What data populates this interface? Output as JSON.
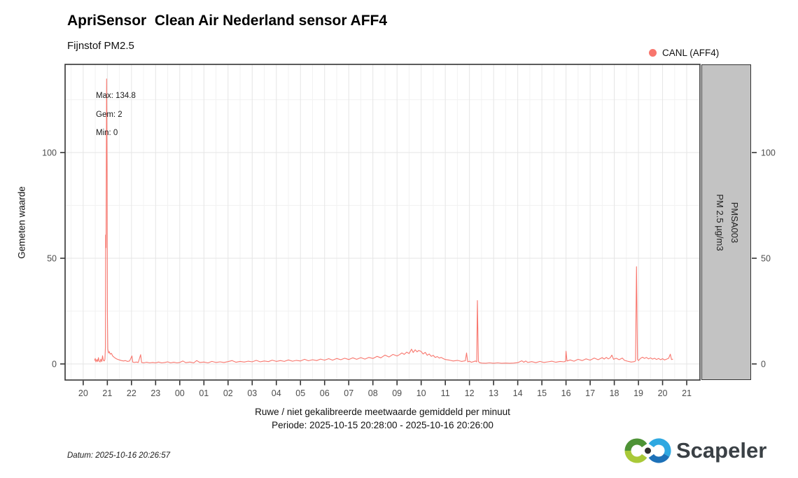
{
  "header": {
    "title": "ApriSensor  Clean Air Nederland sensor AFF4",
    "subtitle": "Fijnstof PM2.5"
  },
  "legend": {
    "label": "CANL (AFF4)"
  },
  "stats": {
    "max": "Max: 134.8",
    "gem": "Gem: 2",
    "min": "Min: 0"
  },
  "strip": {
    "line1": "PMSA003",
    "line2": "PM 2.5 µg/m3"
  },
  "footer": {
    "datum": "Datum: 2025-10-16 20:26:57",
    "logo_text": "Scapeler"
  },
  "colors": {
    "line": "#F8766D",
    "strip_fill": "#C3C3C3",
    "panel_border": "#333333",
    "grid_major": "#E5E5E5",
    "grid_minor": "#F2F2F2",
    "tick_color": "#333333",
    "tick_label": "#4D4D4D",
    "logo_green_dark": "#4E9336",
    "logo_green_light": "#A9C938",
    "logo_blue_light": "#2FA8E1",
    "logo_blue_dark": "#1D71B8",
    "logo_dot": "#2F2F2F",
    "logo_text_color": "#3A4045"
  },
  "chart_data": {
    "type": "line",
    "title": "ApriSensor  Clean Air Nederland sensor AFF4",
    "subtitle": "Fijnstof PM2.5",
    "xlabel": "Ruwe / niet gekalibreerde meetwaarde gemiddeld per minuut",
    "xlabel2": "Periode: 2025-10-15 20:28:00 - 2025-10-16 20:26:00",
    "ylabel": "Gemeten waarde",
    "y2label": "PMSA003 PM 2.5 µg/m3",
    "legend_position": "top-right",
    "grid": true,
    "stats": {
      "max": 134.8,
      "mean": 2,
      "min": 0
    },
    "xlim": [
      19.25,
      45.55
    ],
    "ylim": [
      -7.6,
      141.7
    ],
    "x_tick_hours": [
      20,
      21,
      22,
      23,
      24,
      25,
      26,
      27,
      28,
      29,
      30,
      31,
      32,
      33,
      34,
      35,
      36,
      37,
      38,
      39,
      40,
      41,
      42,
      43,
      44,
      45
    ],
    "x_tick_labels": [
      "20",
      "21",
      "22",
      "23",
      "00",
      "01",
      "02",
      "03",
      "04",
      "05",
      "06",
      "07",
      "08",
      "09",
      "10",
      "11",
      "12",
      "13",
      "14",
      "15",
      "16",
      "17",
      "18",
      "19",
      "20",
      "21"
    ],
    "y_ticks": [
      0,
      50,
      100
    ],
    "y_minor_ticks": [
      25,
      75,
      125
    ],
    "series": [
      {
        "name": "CANL (AFF4)",
        "color": "#F8766D",
        "points": [
          [
            20.47,
            1.6
          ],
          [
            20.5,
            2.6
          ],
          [
            20.53,
            1.0
          ],
          [
            20.57,
            2.1
          ],
          [
            20.6,
            1.1
          ],
          [
            20.63,
            3.0
          ],
          [
            20.66,
            1.4
          ],
          [
            20.7,
            0.9
          ],
          [
            20.73,
            2.3
          ],
          [
            20.77,
            1.1
          ],
          [
            20.8,
            3.9
          ],
          [
            20.83,
            1.8
          ],
          [
            20.87,
            1.4
          ],
          [
            20.9,
            2.2
          ],
          [
            20.92,
            8.0
          ],
          [
            20.93,
            61.0
          ],
          [
            20.945,
            55.0
          ],
          [
            20.97,
            134.8
          ],
          [
            20.99,
            90.0
          ],
          [
            21.0,
            25.0
          ],
          [
            21.02,
            7.0
          ],
          [
            21.05,
            5.2
          ],
          [
            21.08,
            5.8
          ],
          [
            21.12,
            4.6
          ],
          [
            21.17,
            5.0
          ],
          [
            21.22,
            3.8
          ],
          [
            21.28,
            3.2
          ],
          [
            21.35,
            2.6
          ],
          [
            21.42,
            2.2
          ],
          [
            21.5,
            1.9
          ],
          [
            21.58,
            1.6
          ],
          [
            21.67,
            1.4
          ],
          [
            21.75,
            1.6
          ],
          [
            21.83,
            1.2
          ],
          [
            21.92,
            1.4
          ],
          [
            22.02,
            3.8
          ],
          [
            22.05,
            0.9
          ],
          [
            22.12,
            0.7
          ],
          [
            22.2,
            0.9
          ],
          [
            22.28,
            0.7
          ],
          [
            22.38,
            4.4
          ],
          [
            22.42,
            0.7
          ],
          [
            22.5,
            0.5
          ],
          [
            22.62,
            0.8
          ],
          [
            22.75,
            0.5
          ],
          [
            22.88,
            0.7
          ],
          [
            23.0,
            0.5
          ],
          [
            23.12,
            0.9
          ],
          [
            23.25,
            0.5
          ],
          [
            23.38,
            0.7
          ],
          [
            23.5,
            1.0
          ],
          [
            23.62,
            0.5
          ],
          [
            23.75,
            0.8
          ],
          [
            23.88,
            0.5
          ],
          [
            24.0,
            0.7
          ],
          [
            24.13,
            1.4
          ],
          [
            24.25,
            0.6
          ],
          [
            24.42,
            0.9
          ],
          [
            24.58,
            0.5
          ],
          [
            24.7,
            1.6
          ],
          [
            24.83,
            0.7
          ],
          [
            25.0,
            0.9
          ],
          [
            25.17,
            0.5
          ],
          [
            25.33,
            1.2
          ],
          [
            25.5,
            0.7
          ],
          [
            25.67,
            1.0
          ],
          [
            25.83,
            0.7
          ],
          [
            26.0,
            1.1
          ],
          [
            26.17,
            1.6
          ],
          [
            26.33,
            0.8
          ],
          [
            26.5,
            1.2
          ],
          [
            26.67,
            0.9
          ],
          [
            26.83,
            1.3
          ],
          [
            27.0,
            1.0
          ],
          [
            27.17,
            1.7
          ],
          [
            27.33,
            1.0
          ],
          [
            27.5,
            1.4
          ],
          [
            27.67,
            1.1
          ],
          [
            27.83,
            1.8
          ],
          [
            28.0,
            1.2
          ],
          [
            28.17,
            1.6
          ],
          [
            28.33,
            1.2
          ],
          [
            28.5,
            1.9
          ],
          [
            28.67,
            1.3
          ],
          [
            28.83,
            1.7
          ],
          [
            29.0,
            1.4
          ],
          [
            29.17,
            2.2
          ],
          [
            29.33,
            1.5
          ],
          [
            29.5,
            2.0
          ],
          [
            29.67,
            1.6
          ],
          [
            29.83,
            2.3
          ],
          [
            30.0,
            1.8
          ],
          [
            30.17,
            2.5
          ],
          [
            30.33,
            1.8
          ],
          [
            30.5,
            2.6
          ],
          [
            30.67,
            2.0
          ],
          [
            30.83,
            2.7
          ],
          [
            31.0,
            2.1
          ],
          [
            31.17,
            2.9
          ],
          [
            31.33,
            2.2
          ],
          [
            31.5,
            3.0
          ],
          [
            31.67,
            2.3
          ],
          [
            31.83,
            3.1
          ],
          [
            32.0,
            2.6
          ],
          [
            32.17,
            3.6
          ],
          [
            32.33,
            2.9
          ],
          [
            32.5,
            4.2
          ],
          [
            32.67,
            3.3
          ],
          [
            32.83,
            4.5
          ],
          [
            33.0,
            3.8
          ],
          [
            33.1,
            4.4
          ],
          [
            33.2,
            5.2
          ],
          [
            33.3,
            4.5
          ],
          [
            33.4,
            5.6
          ],
          [
            33.5,
            4.9
          ],
          [
            33.6,
            7.0
          ],
          [
            33.67,
            5.4
          ],
          [
            33.75,
            6.7
          ],
          [
            33.83,
            5.7
          ],
          [
            33.9,
            6.4
          ],
          [
            34.0,
            5.9
          ],
          [
            34.08,
            4.7
          ],
          [
            34.17,
            5.5
          ],
          [
            34.25,
            4.1
          ],
          [
            34.33,
            4.7
          ],
          [
            34.42,
            3.6
          ],
          [
            34.5,
            4.1
          ],
          [
            34.58,
            3.1
          ],
          [
            34.67,
            3.5
          ],
          [
            34.75,
            2.8
          ],
          [
            34.83,
            3.1
          ],
          [
            34.92,
            2.5
          ],
          [
            35.0,
            2.1
          ],
          [
            35.17,
            1.8
          ],
          [
            35.33,
            1.4
          ],
          [
            35.5,
            1.7
          ],
          [
            35.67,
            1.2
          ],
          [
            35.83,
            1.5
          ],
          [
            35.88,
            5.2
          ],
          [
            35.93,
            1.0
          ],
          [
            36.0,
            1.3
          ],
          [
            36.08,
            0.8
          ],
          [
            36.17,
            1.1
          ],
          [
            36.25,
            1.4
          ],
          [
            36.3,
            1.0
          ],
          [
            36.33,
            30.0
          ],
          [
            36.37,
            1.2
          ],
          [
            36.42,
            0.6
          ],
          [
            36.5,
            0.4
          ],
          [
            36.67,
            0.3
          ],
          [
            36.83,
            0.5
          ],
          [
            37.0,
            0.3
          ],
          [
            37.17,
            0.5
          ],
          [
            37.33,
            0.3
          ],
          [
            37.5,
            0.4
          ],
          [
            37.67,
            0.3
          ],
          [
            37.83,
            0.4
          ],
          [
            38.0,
            0.6
          ],
          [
            38.17,
            1.5
          ],
          [
            38.25,
            0.8
          ],
          [
            38.33,
            1.4
          ],
          [
            38.42,
            0.7
          ],
          [
            38.58,
            1.1
          ],
          [
            38.75,
            0.6
          ],
          [
            38.92,
            1.2
          ],
          [
            39.08,
            0.7
          ],
          [
            39.25,
            1.0
          ],
          [
            39.42,
            1.3
          ],
          [
            39.58,
            0.8
          ],
          [
            39.75,
            1.2
          ],
          [
            39.92,
            1.0
          ],
          [
            39.98,
            1.3
          ],
          [
            40.0,
            6.0
          ],
          [
            40.04,
            1.4
          ],
          [
            40.17,
            1.9
          ],
          [
            40.33,
            1.3
          ],
          [
            40.5,
            2.2
          ],
          [
            40.67,
            1.6
          ],
          [
            40.83,
            2.4
          ],
          [
            41.0,
            1.8
          ],
          [
            41.17,
            2.8
          ],
          [
            41.33,
            2.0
          ],
          [
            41.5,
            3.0
          ],
          [
            41.58,
            2.3
          ],
          [
            41.67,
            3.1
          ],
          [
            41.75,
            2.4
          ],
          [
            41.83,
            2.9
          ],
          [
            41.9,
            4.2
          ],
          [
            41.97,
            2.2
          ],
          [
            42.08,
            2.7
          ],
          [
            42.2,
            2.0
          ],
          [
            42.33,
            2.8
          ],
          [
            42.42,
            1.7
          ],
          [
            42.55,
            1.3
          ],
          [
            42.7,
            0.9
          ],
          [
            42.83,
            1.1
          ],
          [
            42.88,
            1.4
          ],
          [
            42.92,
            46.0
          ],
          [
            42.96,
            2.2
          ],
          [
            43.0,
            1.6
          ],
          [
            43.08,
            2.6
          ],
          [
            43.17,
            3.2
          ],
          [
            43.25,
            2.6
          ],
          [
            43.33,
            3.1
          ],
          [
            43.42,
            2.4
          ],
          [
            43.5,
            2.9
          ],
          [
            43.58,
            2.3
          ],
          [
            43.67,
            2.7
          ],
          [
            43.75,
            2.1
          ],
          [
            43.83,
            2.6
          ],
          [
            43.92,
            2.0
          ],
          [
            44.0,
            2.5
          ],
          [
            44.08,
            1.9
          ],
          [
            44.17,
            2.3
          ],
          [
            44.25,
            2.7
          ],
          [
            44.32,
            4.6
          ],
          [
            44.37,
            2.1
          ],
          [
            44.43,
            2.3
          ]
        ]
      }
    ]
  }
}
